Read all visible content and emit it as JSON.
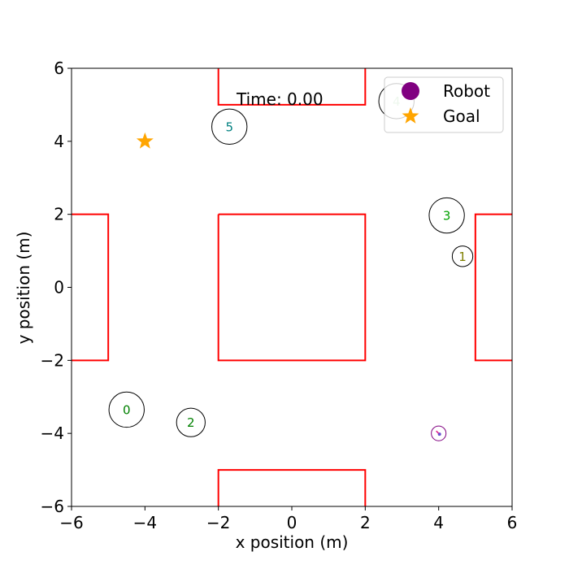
{
  "chart_data": {
    "type": "scatter",
    "title": "",
    "xlabel": "x position (m)",
    "ylabel": "y position (m)",
    "xlim": [
      -6,
      6
    ],
    "ylim": [
      -6,
      6
    ],
    "grid": false,
    "x_ticks": [
      -6,
      -4,
      -2,
      0,
      2,
      4,
      6
    ],
    "y_ticks": [
      -6,
      -4,
      -2,
      0,
      2,
      4,
      6
    ],
    "x_tick_labels": [
      "−6",
      "−4",
      "−2",
      "0",
      "2",
      "4",
      "6"
    ],
    "y_tick_labels": [
      "−6",
      "−4",
      "−2",
      "0",
      "2",
      "4",
      "6"
    ],
    "time_text": "Time: 0.00",
    "legend": {
      "position": "top-right",
      "entries": [
        {
          "label": "Robot",
          "marker": "circle",
          "color": "#800080"
        },
        {
          "label": "Goal",
          "marker": "star",
          "color": "#FFA500"
        }
      ]
    },
    "robot": {
      "x": 4.0,
      "y": -4.0,
      "radius": 0.2,
      "color": "#800080"
    },
    "goal": {
      "x": -4.0,
      "y": 4.0,
      "color": "#FFA500"
    },
    "obstacles": [
      {
        "name": "top-wall",
        "x": [
          -2,
          -2,
          2,
          2
        ],
        "y": [
          6,
          5,
          5,
          6
        ]
      },
      {
        "name": "center-block",
        "x": [
          -2,
          2,
          2,
          -2,
          -2
        ],
        "y": [
          2,
          2,
          -2,
          -2,
          2
        ]
      },
      {
        "name": "bottom-wall",
        "x": [
          -2,
          -2,
          2,
          2
        ],
        "y": [
          -6,
          -5,
          -5,
          -6
        ]
      },
      {
        "name": "left-wall",
        "x": [
          -6,
          -5,
          -5,
          -6
        ],
        "y": [
          2,
          2,
          -2,
          -2
        ]
      },
      {
        "name": "right-wall",
        "x": [
          6,
          5,
          5,
          6
        ],
        "y": [
          2,
          2,
          -2,
          -2
        ]
      }
    ],
    "obstacle_color": "#FF0000",
    "agents": [
      {
        "id": "0",
        "x": -4.5,
        "y": -3.35,
        "radius": 0.48,
        "label_color": "#008000"
      },
      {
        "id": "1",
        "x": 4.65,
        "y": 0.85,
        "radius": 0.28,
        "label_color": "#808000"
      },
      {
        "id": "2",
        "x": -2.75,
        "y": -3.7,
        "radius": 0.39,
        "label_color": "#008000"
      },
      {
        "id": "3",
        "x": 4.22,
        "y": 1.97,
        "radius": 0.48,
        "label_color": "#00A000"
      },
      {
        "id": "4",
        "x": 2.85,
        "y": 5.1,
        "radius": 0.48,
        "label_color": "#A8D8A8"
      },
      {
        "id": "5",
        "x": -1.7,
        "y": 4.4,
        "radius": 0.48,
        "label_color": "#008080"
      }
    ]
  }
}
